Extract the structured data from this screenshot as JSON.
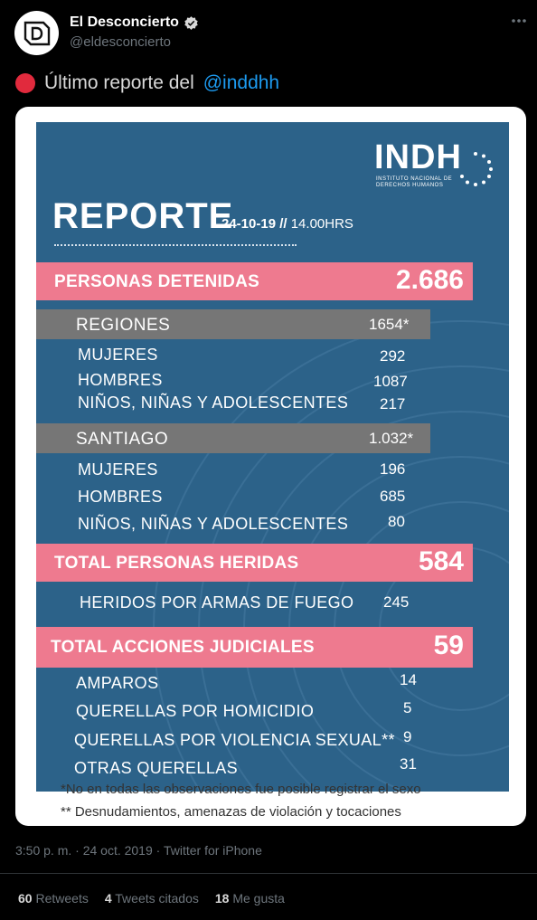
{
  "account": {
    "name": "El Desconcierto",
    "handle": "@eldesconcierto"
  },
  "tweet": {
    "text": "Último reporte del",
    "mention": "@inddhh"
  },
  "poster": {
    "logo_main": "INDH",
    "logo_sub": "INSTITUTO NACIONAL DE DERECHOS HUMANOS",
    "title": "REPORTE",
    "date": "24-10-19",
    "time_sep": " // ",
    "time": "14.00HRS",
    "detenidas": {
      "label": "PERSONAS DETENIDAS",
      "value": "2.686"
    },
    "regiones": {
      "label": "REGIONES",
      "value": "1654*",
      "rows": [
        {
          "label": "MUJERES",
          "value": "292"
        },
        {
          "label": "HOMBRES",
          "value": "1087"
        },
        {
          "label": "NIÑOS, NIÑAS Y ADOLESCENTES",
          "value": "217"
        }
      ]
    },
    "santiago": {
      "label": "SANTIAGO",
      "value": "1.032*",
      "rows": [
        {
          "label": "MUJERES",
          "value": "196"
        },
        {
          "label": "HOMBRES",
          "value": "685"
        },
        {
          "label": "NIÑOS, NIÑAS Y ADOLESCENTES",
          "value": "80"
        }
      ]
    },
    "heridas": {
      "label": "TOTAL PERSONAS HERIDAS",
      "value": "584"
    },
    "heridas_rows": [
      {
        "label": "HERIDOS POR ARMAS DE FUEGO",
        "value": "245"
      }
    ],
    "judiciales": {
      "label": "TOTAL ACCIONES JUDICIALES",
      "value": "59"
    },
    "judiciales_rows": [
      {
        "label": "AMPAROS",
        "value": "14"
      },
      {
        "label": "QUERELLAS POR HOMICIDIO",
        "value": "5"
      },
      {
        "label": "QUERELLAS POR VIOLENCIA SEXUAL**",
        "value": "9"
      },
      {
        "label": "OTRAS QUERELLAS",
        "value": "31"
      }
    ],
    "footnote1": "*No en todas las observaciones fue posible registrar el sexo",
    "footnote2": "** Desnudamientos, amenazas de violación y tocaciones"
  },
  "meta": {
    "timestamp": "3:50 p. m. · 24 oct. 2019 · Twitter for iPhone"
  },
  "stats": {
    "retweets_count": "60",
    "retweets_label": "Retweets",
    "quotes_count": "4",
    "quotes_label": "Tweets citados",
    "likes_count": "18",
    "likes_label": "Me gusta"
  },
  "colors": {
    "background": "#000000",
    "poster_blue": "#2c6289",
    "pink": "#ee7a8f",
    "gray": "#767676",
    "link": "#1d9bf0",
    "muted": "#6e767d"
  }
}
